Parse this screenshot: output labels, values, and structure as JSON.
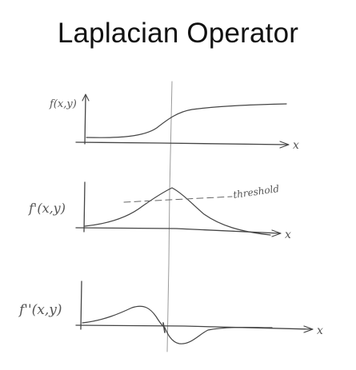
{
  "title": "Laplacian Operator",
  "panels": [
    {
      "id": "function",
      "ylabel": "f(x,y)",
      "xlabel": "x"
    },
    {
      "id": "first-derivative",
      "ylabel": "f'(x,y)",
      "xlabel": "x",
      "annotation": "threshold"
    },
    {
      "id": "second-derivative",
      "ylabel": "f''(x,y)",
      "xlabel": "x"
    }
  ],
  "colors": {
    "ink": "#444444",
    "text": "#111111"
  }
}
